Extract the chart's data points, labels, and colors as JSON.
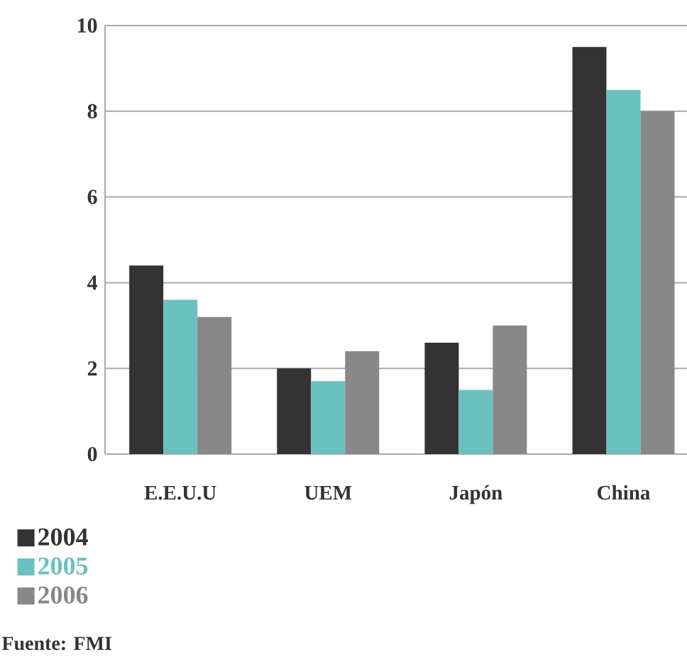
{
  "chart_data": {
    "type": "bar",
    "categories": [
      "E.E.U.U",
      "UEM",
      "Japón",
      "China"
    ],
    "series": [
      {
        "name": "2004",
        "color": "#333333",
        "values": [
          4.4,
          2.0,
          2.6,
          9.5
        ]
      },
      {
        "name": "2005",
        "color": "#6bc1bf",
        "values": [
          3.6,
          1.7,
          1.5,
          8.5
        ]
      },
      {
        "name": "2006",
        "color": "#888888",
        "values": [
          3.2,
          2.4,
          3.0,
          8.0
        ]
      }
    ],
    "ylim": [
      0,
      10
    ],
    "yticks": [
      0,
      2,
      4,
      6,
      8,
      10
    ],
    "grid": "y",
    "legend": "bottom left",
    "annotations": [
      "Fuente: FMI"
    ]
  }
}
